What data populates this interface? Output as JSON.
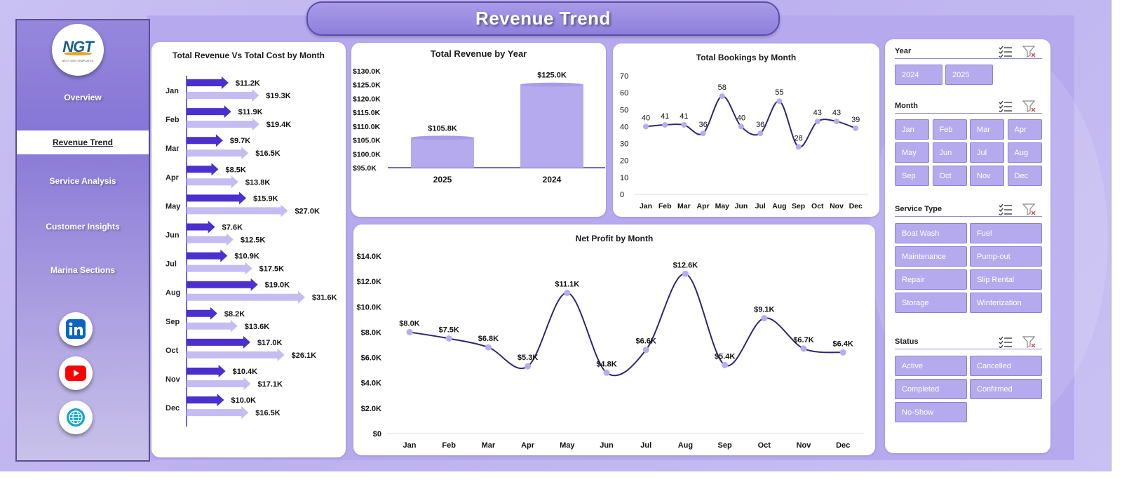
{
  "header": {
    "title": "Revenue Trend"
  },
  "logo": {
    "text": "NGT",
    "subtext": "NEXT GEN TEMPLATES"
  },
  "nav": {
    "items": [
      {
        "label": "Overview",
        "active": false
      },
      {
        "label": "Revenue Trend",
        "active": true
      },
      {
        "label": "Service Analysis",
        "active": false
      },
      {
        "label": "Customer Insights",
        "active": false
      },
      {
        "label": "Marina Sections",
        "active": false
      }
    ]
  },
  "social": [
    "linkedin-icon",
    "youtube-icon",
    "globe-icon"
  ],
  "colors": {
    "accent": "#4b2fcf",
    "accent_light": "#c5bdf2",
    "line": "#2e2670",
    "marker": "#b8acf0",
    "bar": "#b6aaee"
  },
  "charts": {
    "rev_cost": {
      "title": "Total Revenue Vs Total Cost by Month",
      "chart_data": {
        "type": "bar",
        "orientation": "horizontal",
        "categories": [
          "Jan",
          "Feb",
          "Mar",
          "Apr",
          "May",
          "Jun",
          "Jul",
          "Aug",
          "Sep",
          "Oct",
          "Nov",
          "Dec"
        ],
        "series": [
          {
            "values": [
              11.2,
              11.9,
              9.7,
              8.5,
              15.9,
              7.6,
              10.9,
              19.0,
              8.2,
              17.0,
              10.4,
              10.0
            ],
            "labels": [
              "$11.2K",
              "$11.9K",
              "$9.7K",
              "$8.5K",
              "$15.9K",
              "$7.6K",
              "$10.9K",
              "$19.0K",
              "$8.2K",
              "$17.0K",
              "$10.4K",
              "$10.0K"
            ]
          },
          {
            "values": [
              19.3,
              19.4,
              16.5,
              13.8,
              27.0,
              12.5,
              17.5,
              31.6,
              13.6,
              26.1,
              17.1,
              16.5
            ],
            "labels": [
              "$19.3K",
              "$19.4K",
              "$16.5K",
              "$13.8K",
              "$27.0K",
              "$12.5K",
              "$17.5K",
              "$31.6K",
              "$13.6K",
              "$26.1K",
              "$17.1K",
              "$16.5K"
            ]
          }
        ]
      }
    },
    "rev_year": {
      "title": "Total Revenue by Year",
      "chart_data": {
        "type": "bar",
        "categories": [
          "2025",
          "2024"
        ],
        "values": [
          105.8,
          125.0
        ],
        "labels": [
          "$105.8K",
          "$125.0K"
        ],
        "ylim": [
          95,
          130
        ],
        "ticks": [
          "$130.0K",
          "$125.0K",
          "$120.0K",
          "$115.0K",
          "$110.0K",
          "$105.0K",
          "$100.0K",
          "$95.0K"
        ]
      }
    },
    "bookings": {
      "title": "Total Bookings by Month",
      "chart_data": {
        "type": "line",
        "categories": [
          "Jan",
          "Feb",
          "Mar",
          "Apr",
          "May",
          "Jun",
          "Jul",
          "Aug",
          "Sep",
          "Oct",
          "Nov",
          "Dec"
        ],
        "values": [
          40,
          41,
          41,
          36,
          58,
          40,
          36,
          55,
          28,
          43,
          43,
          39
        ],
        "ylim": [
          0,
          70
        ],
        "ticks": [
          "70",
          "60",
          "50",
          "40",
          "30",
          "20",
          "10",
          "0"
        ]
      }
    },
    "net_profit": {
      "title": "Net Profit by Month",
      "chart_data": {
        "type": "line",
        "categories": [
          "Jan",
          "Feb",
          "Mar",
          "Apr",
          "May",
          "Jun",
          "Jul",
          "Aug",
          "Sep",
          "Oct",
          "Nov",
          "Dec"
        ],
        "values": [
          8.0,
          7.5,
          6.8,
          5.3,
          11.1,
          4.8,
          6.6,
          12.6,
          5.4,
          9.1,
          6.7,
          6.4
        ],
        "labels": [
          "$8.0K",
          "$7.5K",
          "$6.8K",
          "$5.3K",
          "$11.1K",
          "$4.8K",
          "$6.6K",
          "$12.6K",
          "$5.4K",
          "$9.1K",
          "$6.7K",
          "$6.4K"
        ],
        "ylim": [
          0,
          14
        ],
        "ticks": [
          "$14.0K",
          "$12.0K",
          "$10.0K",
          "$8.0K",
          "$6.0K",
          "$4.0K",
          "$2.0K",
          "$0"
        ]
      }
    }
  },
  "slicers": [
    {
      "label": "Year",
      "items": [
        "2024",
        "2025"
      ]
    },
    {
      "label": "Month",
      "items": [
        "Jan",
        "Feb",
        "Mar",
        "Apr",
        "May",
        "Jun",
        "Jul",
        "Aug",
        "Sep",
        "Oct",
        "Nov",
        "Dec"
      ]
    },
    {
      "label": "Service Type",
      "items": [
        "Boat Wash",
        "Fuel",
        "Maintenance",
        "Pump-out",
        "Repair",
        "Slip Rental",
        "Storage",
        "Winterization"
      ]
    },
    {
      "label": "Status",
      "items": [
        "Active",
        "Cancelled",
        "Completed",
        "Confirmed",
        "No-Show"
      ]
    }
  ]
}
